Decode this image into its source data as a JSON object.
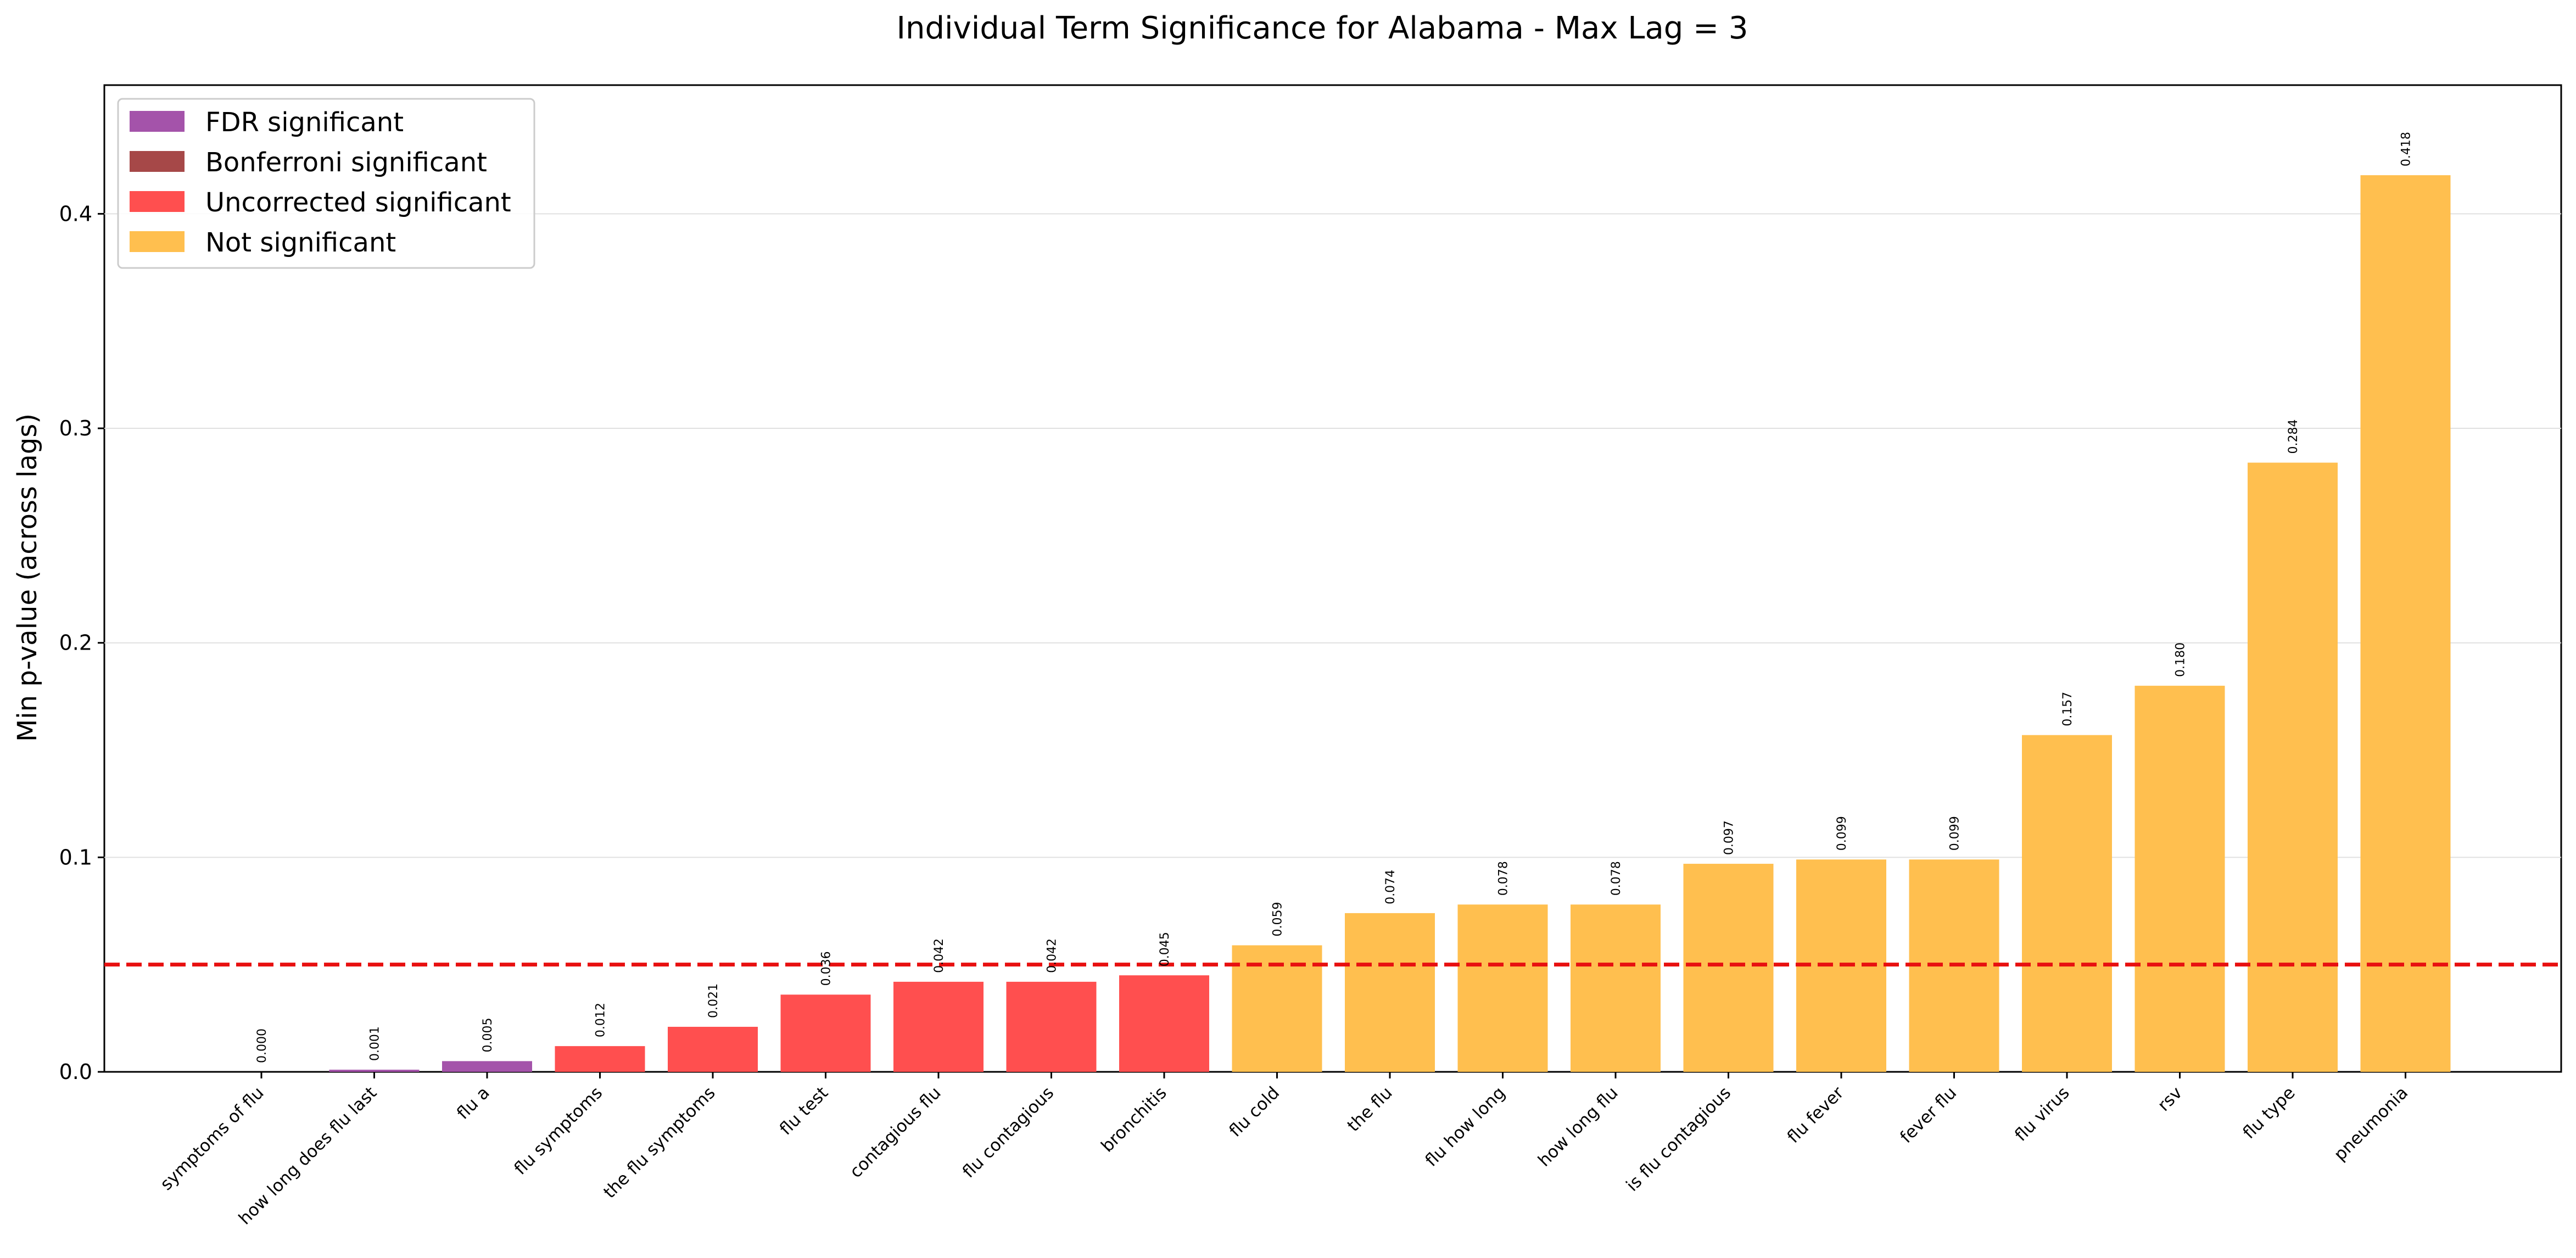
{
  "chart_data": {
    "type": "bar",
    "title": "Individual Term Significance for Alabama - Max Lag = 3",
    "xlabel": "",
    "ylabel": "Min p-value (across lags)",
    "ylim": [
      0,
      0.46
    ],
    "yticks": [
      "0.0",
      "0.1",
      "0.2",
      "0.3",
      "0.4"
    ],
    "grid": "horizontal",
    "legend_position": "top-left",
    "threshold": 0.05,
    "categories": [
      "symptoms of flu",
      "how long does flu last",
      "flu a",
      "flu symptoms",
      "the flu symptoms",
      "flu test",
      "contagious flu",
      "flu contagious",
      "bronchitis",
      "flu cold",
      "the flu",
      "flu how long",
      "how long flu",
      "is flu contagious",
      "flu fever",
      "fever flu",
      "flu virus",
      "rsv",
      "flu type",
      "pneumonia"
    ],
    "values": [
      0.0,
      0.001,
      0.005,
      0.012,
      0.021,
      0.036,
      0.042,
      0.042,
      0.045,
      0.059,
      0.074,
      0.078,
      0.078,
      0.097,
      0.099,
      0.099,
      0.157,
      0.18,
      0.284,
      0.418
    ],
    "value_labels": [
      "0.000",
      "0.001",
      "0.005",
      "0.012",
      "0.021",
      "0.036",
      "0.042",
      "0.042",
      "0.045",
      "0.059",
      "0.074",
      "0.078",
      "0.078",
      "0.097",
      "0.099",
      "0.099",
      "0.157",
      "0.180",
      "0.284",
      "0.418"
    ],
    "classes": [
      "fdr",
      "fdr",
      "fdr",
      "uncorrected",
      "uncorrected",
      "uncorrected",
      "uncorrected",
      "uncorrected",
      "uncorrected",
      "not",
      "not",
      "not",
      "not",
      "not",
      "not",
      "not",
      "not",
      "not",
      "not",
      "not"
    ],
    "legend": [
      {
        "key": "fdr",
        "label": "FDR significant",
        "color": "#a453aa"
      },
      {
        "key": "bonferroni",
        "label": "Bonferroni significant",
        "color": "#a64848"
      },
      {
        "key": "uncorrected",
        "label": "Uncorrected significant",
        "color": "#ff4f4f"
      },
      {
        "key": "not",
        "label": "Not significant",
        "color": "#ffbf4f"
      }
    ],
    "threshold_color": "#e81010"
  }
}
